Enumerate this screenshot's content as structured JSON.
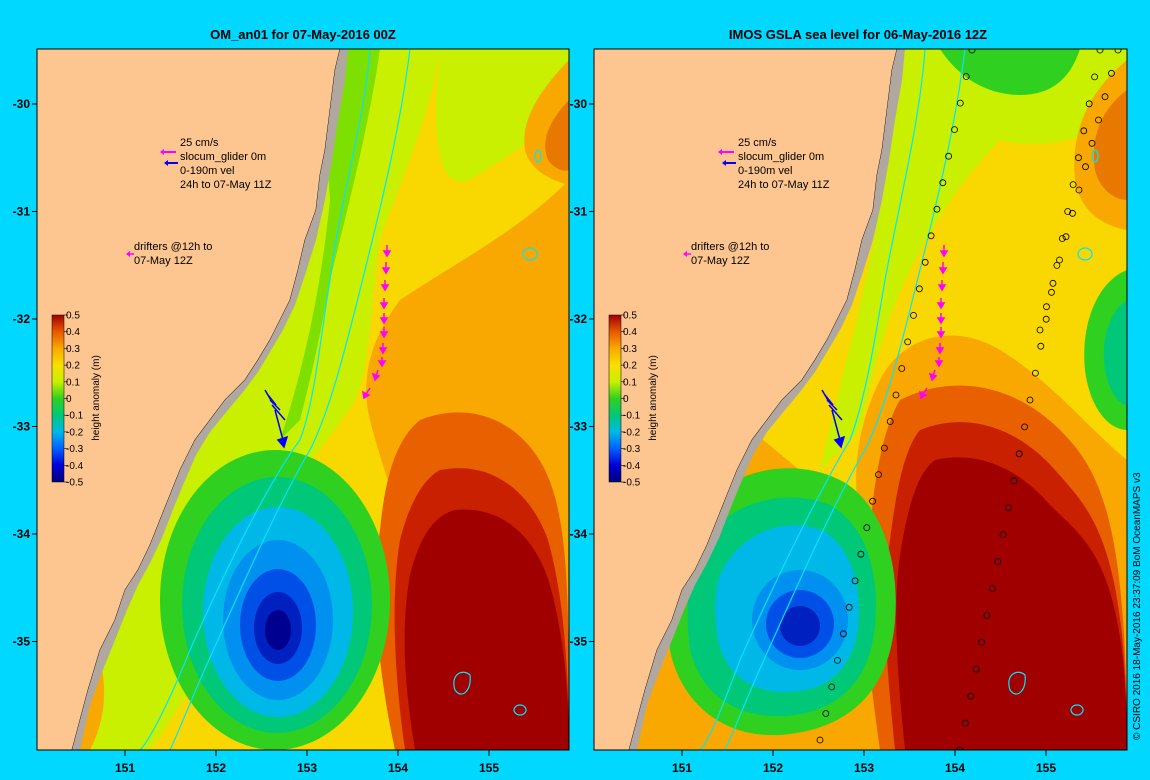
{
  "panels": [
    {
      "title": "OM_an01 for 07-May-2016 00Z",
      "legend": {
        "scale_label": "25 cm/s",
        "glider_label": "slocum_glider 0m",
        "vel_label": "0-190m vel",
        "period_label": "24h to 07-May 11Z",
        "drifters_label_1": "drifters @12h to",
        "drifters_label_2": "07-May 12Z"
      }
    },
    {
      "title": "IMOS GSLA sea level  for 06-May-2016 12Z",
      "legend": {
        "scale_label": "25 cm/s",
        "glider_label": "slocum_glider 0m",
        "vel_label": "0-190m vel",
        "period_label": "24h to 07-May 11Z",
        "drifters_label_1": "drifters @12h to",
        "drifters_label_2": "07-May 12Z"
      }
    }
  ],
  "axes": {
    "lon_ticks": [
      "151",
      "152",
      "153",
      "154",
      "155"
    ],
    "lat_ticks": [
      "-30",
      "-31",
      "-32",
      "-33",
      "-34",
      "-35"
    ]
  },
  "colorbar": {
    "title": "height anomaly (m)",
    "ticks": [
      "0.5",
      "0.4",
      "0.3",
      "0.2",
      "0.1",
      "0",
      "-0.1",
      "-0.2",
      "-0.3",
      "-0.4",
      "-0.5"
    ]
  },
  "credit": "© CSIRO 2016  18-May-2016 23:37:09 BoM OceanMAPS v3",
  "colors": {
    "background": "#00d8ff",
    "land": "#fdc690",
    "coast_shelf": "#b0a8a0",
    "drifter": "#ff00ff",
    "glider": "#0000ff",
    "isobath": "#00e5ff"
  }
}
